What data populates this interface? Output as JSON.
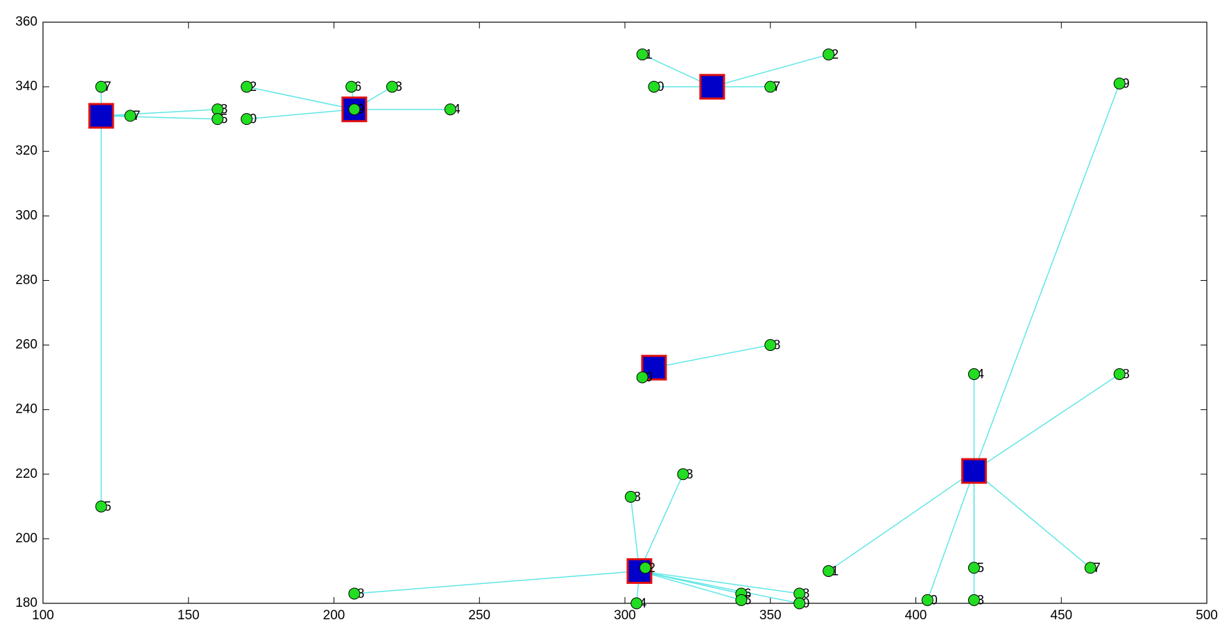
{
  "chart_data": {
    "type": "cluster-scatter",
    "xlim": [
      100,
      500
    ],
    "xticks": [
      100,
      150,
      200,
      250,
      300,
      350,
      400,
      450,
      500
    ],
    "ylim": [
      180,
      360
    ],
    "yticks": [
      180,
      200,
      220,
      240,
      260,
      280,
      300,
      320,
      340,
      360
    ],
    "point_color": "#22dd22",
    "center_color": "#0000c8",
    "center_edge_color": "#e01010",
    "link_color": "#5ee6e6",
    "clusters": [
      {
        "center": [
          120,
          331
        ],
        "points": [
          {
            "x": 120,
            "y": 340,
            "label": "7"
          },
          {
            "x": 130,
            "y": 331,
            "label": "7"
          },
          {
            "x": 160,
            "y": 333,
            "label": "3"
          },
          {
            "x": 160,
            "y": 330,
            "label": "5"
          },
          {
            "x": 120,
            "y": 210,
            "label": "5"
          }
        ]
      },
      {
        "center": [
          207,
          333
        ],
        "points": [
          {
            "x": 170,
            "y": 340,
            "label": "2"
          },
          {
            "x": 170,
            "y": 330,
            "label": "0"
          },
          {
            "x": 206,
            "y": 340,
            "label": "6"
          },
          {
            "x": 220,
            "y": 340,
            "label": "3"
          },
          {
            "x": 240,
            "y": 333,
            "label": "4"
          },
          {
            "x": 207,
            "y": 333,
            "label": "9"
          }
        ]
      },
      {
        "center": [
          330,
          340
        ],
        "points": [
          {
            "x": 306,
            "y": 350,
            "label": "1"
          },
          {
            "x": 370,
            "y": 350,
            "label": "2"
          },
          {
            "x": 310,
            "y": 340,
            "label": "0"
          },
          {
            "x": 350,
            "y": 340,
            "label": "7"
          }
        ]
      },
      {
        "center": [
          310,
          253
        ],
        "points": [
          {
            "x": 350,
            "y": 260,
            "label": "8"
          },
          {
            "x": 306,
            "y": 250,
            "label": "0"
          }
        ]
      },
      {
        "center": [
          305,
          190
        ],
        "points": [
          {
            "x": 302,
            "y": 213,
            "label": "3"
          },
          {
            "x": 320,
            "y": 220,
            "label": "3"
          },
          {
            "x": 207,
            "y": 183,
            "label": "8"
          },
          {
            "x": 304,
            "y": 180,
            "label": "4"
          },
          {
            "x": 340,
            "y": 183,
            "label": "6"
          },
          {
            "x": 340,
            "y": 181,
            "label": "5"
          },
          {
            "x": 360,
            "y": 183,
            "label": "8"
          },
          {
            "x": 360,
            "y": 180,
            "label": "0"
          },
          {
            "x": 307,
            "y": 191,
            "label": "2"
          }
        ]
      },
      {
        "center": [
          420,
          221
        ],
        "points": [
          {
            "x": 470,
            "y": 341,
            "label": "9"
          },
          {
            "x": 420,
            "y": 251,
            "label": "4"
          },
          {
            "x": 470,
            "y": 251,
            "label": "8"
          },
          {
            "x": 370,
            "y": 190,
            "label": "1"
          },
          {
            "x": 404,
            "y": 181,
            "label": "0"
          },
          {
            "x": 420,
            "y": 191,
            "label": "5"
          },
          {
            "x": 420,
            "y": 181,
            "label": "3"
          },
          {
            "x": 460,
            "y": 191,
            "label": "7"
          }
        ]
      }
    ]
  }
}
